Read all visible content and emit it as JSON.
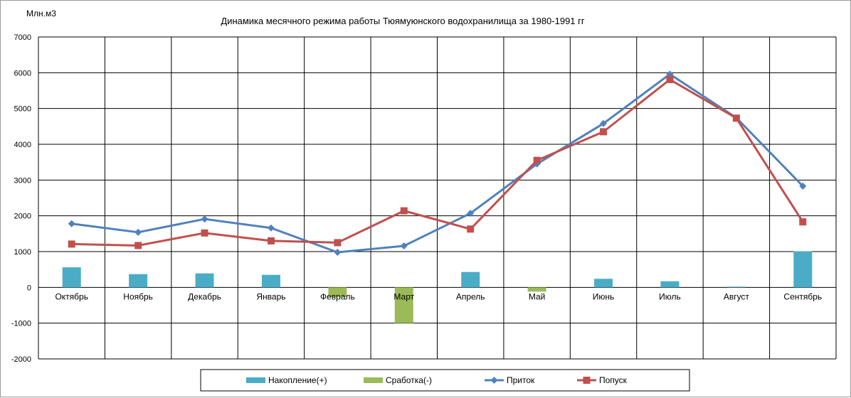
{
  "chart_data": {
    "type": "bar+line",
    "title": "Динамика месячного режима работы Тюямуюнского водохранилища за 1980-1991 гг",
    "ylabel": "Млн.м3",
    "ylim": [
      -2000,
      7000
    ],
    "ytick_step": 1000,
    "grid": true,
    "legend_position": "bottom",
    "categories": [
      "Октябрь",
      "Ноябрь",
      "Декабрь",
      "Январь",
      "Февраль",
      "Март",
      "Апрель",
      "Май",
      "Июнь",
      "Июль",
      "Август",
      "Сентябрь"
    ],
    "series": [
      {
        "name": "Накопление(+)",
        "kind": "bar",
        "color": "#4bacc6",
        "values": [
          560,
          370,
          390,
          350,
          0,
          0,
          430,
          0,
          240,
          170,
          20,
          1010
        ]
      },
      {
        "name": "Сработка(-)",
        "kind": "bar",
        "color": "#9bbb59",
        "values": [
          0,
          0,
          0,
          0,
          -270,
          -1000,
          0,
          -120,
          0,
          0,
          0,
          0
        ]
      },
      {
        "name": "Приток",
        "kind": "line",
        "color": "#4f81bd",
        "marker": "diamond",
        "values": [
          1780,
          1540,
          1910,
          1660,
          980,
          1160,
          2070,
          3450,
          4580,
          5960,
          4740,
          2830
        ]
      },
      {
        "name": "Попуск",
        "kind": "line",
        "color": "#c0504d",
        "marker": "square",
        "values": [
          1210,
          1170,
          1520,
          1300,
          1250,
          2140,
          1630,
          3550,
          4350,
          5810,
          4730,
          1830
        ]
      }
    ]
  }
}
